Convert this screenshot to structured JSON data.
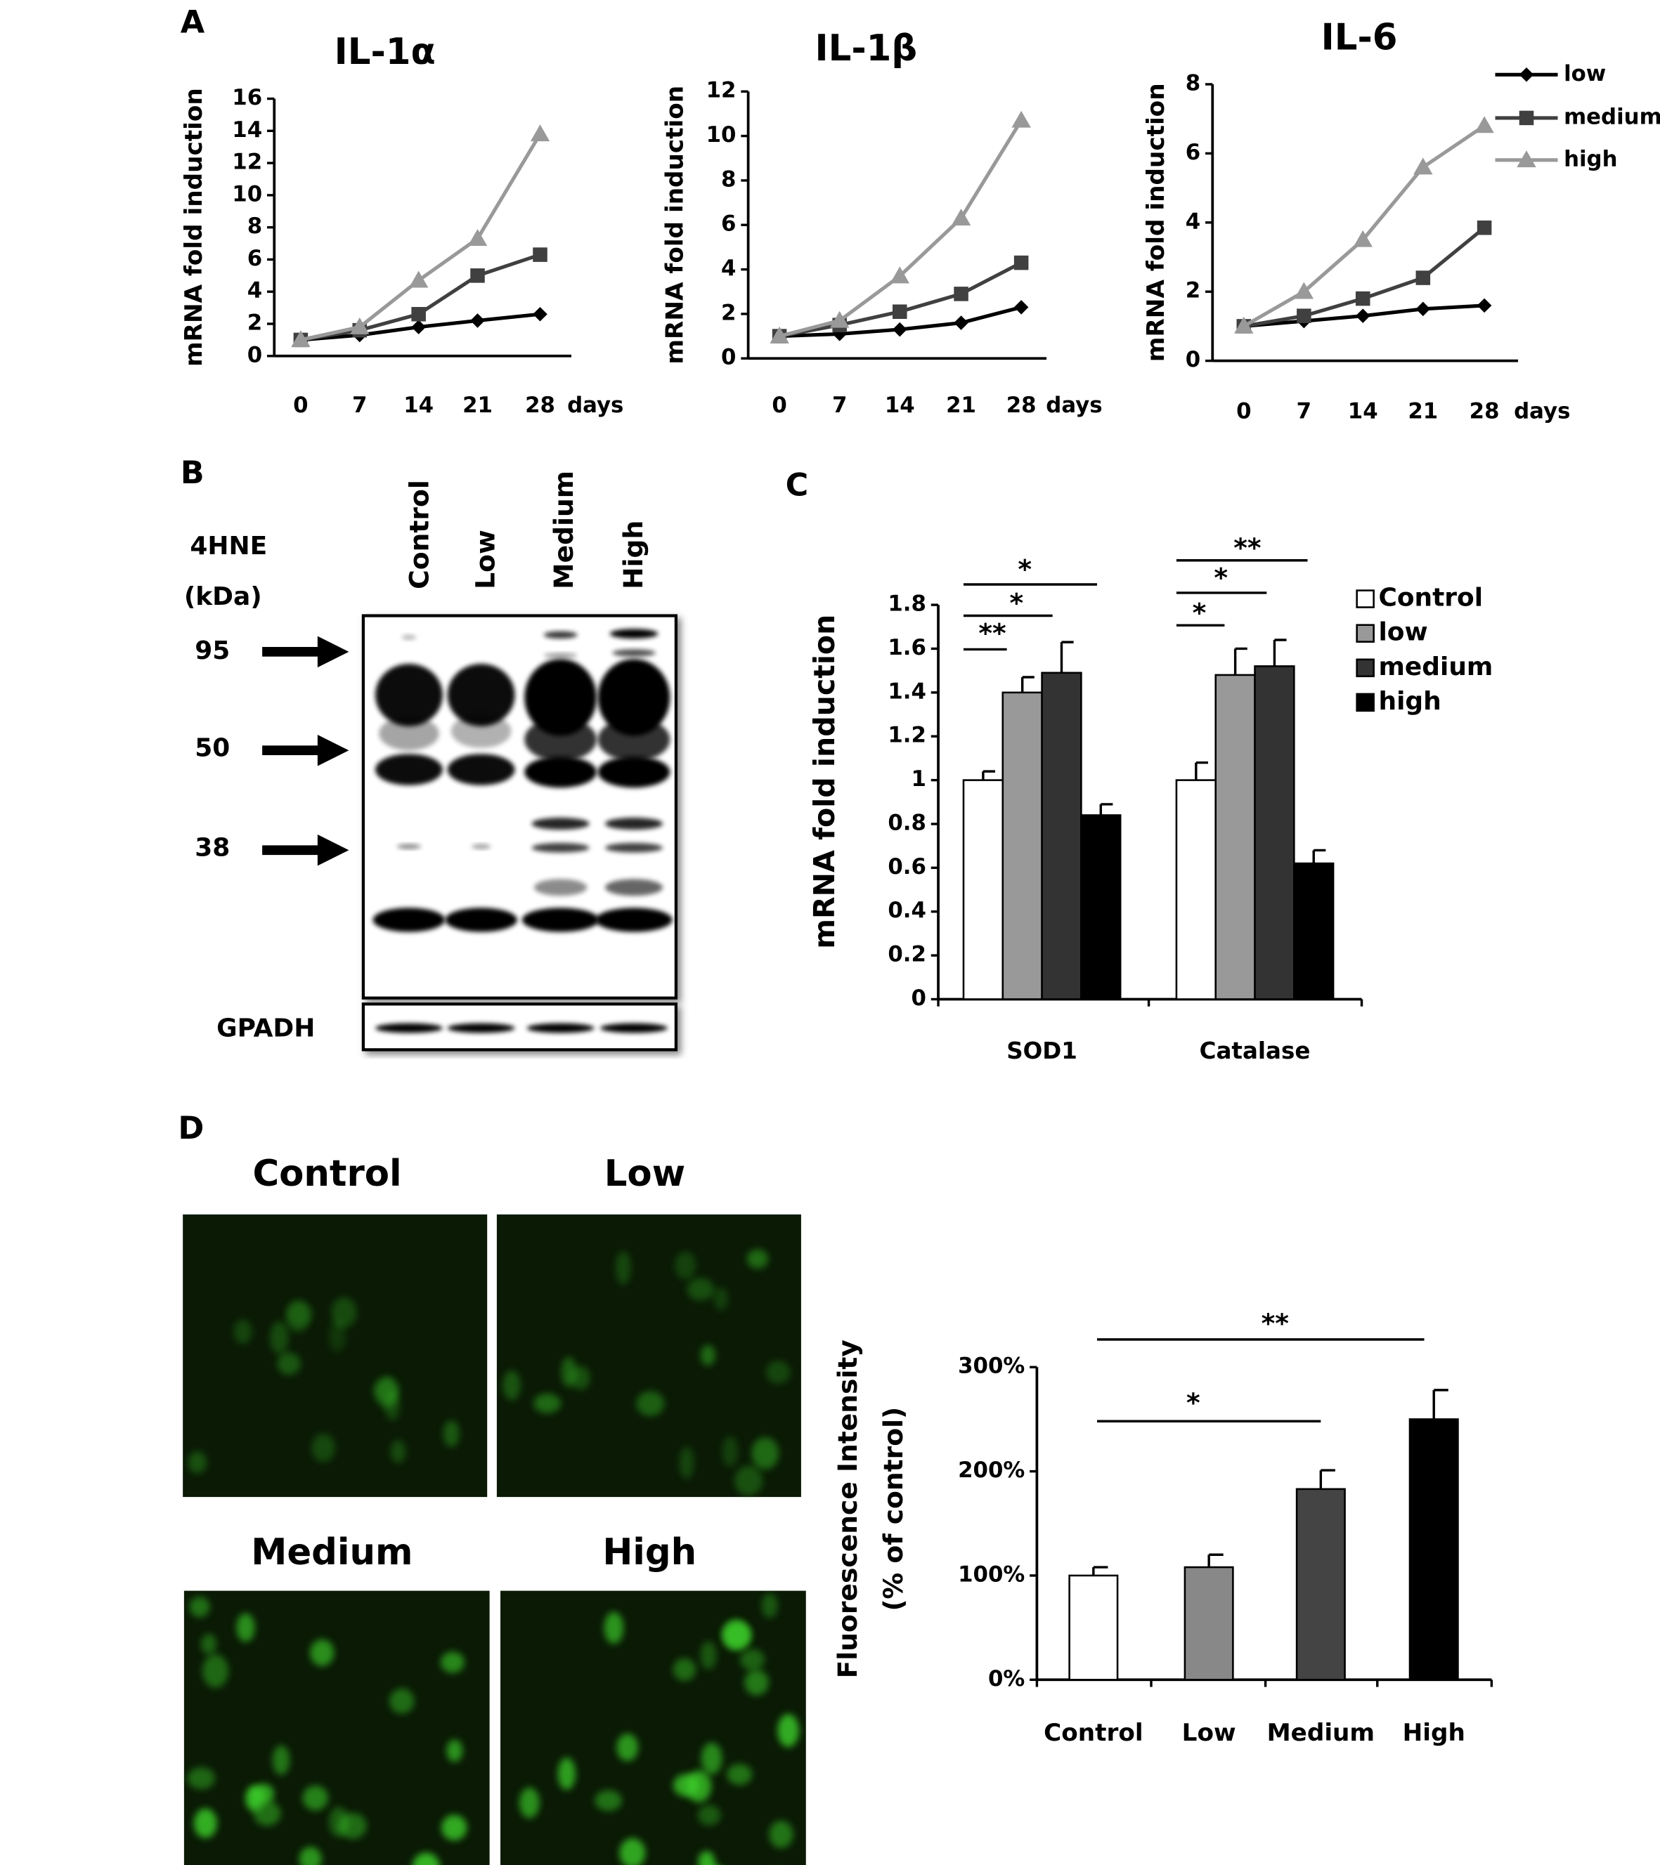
{
  "panel_labels": [
    "A",
    "B",
    "C",
    "D"
  ],
  "chart_data": [
    {
      "type": "line",
      "title": "IL-1α",
      "y_label": "mRNA fold induction",
      "x_label": "days",
      "categories": [
        "0",
        "7",
        "14",
        "21",
        "28"
      ],
      "ylim": [
        0,
        16
      ],
      "yticks": [
        0,
        2,
        4,
        6,
        8,
        10,
        12,
        14,
        16
      ],
      "series": [
        {
          "name": "low",
          "color": "#000000",
          "marker": "diamond",
          "values": [
            1,
            1.3,
            1.8,
            2.2,
            2.6
          ]
        },
        {
          "name": "medium",
          "color": "#404040",
          "marker": "square",
          "values": [
            1,
            1.6,
            2.6,
            5,
            6.3
          ]
        },
        {
          "name": "high",
          "color": "#999999",
          "marker": "triangle",
          "values": [
            1,
            1.8,
            4.7,
            7.3,
            13.8
          ]
        }
      ]
    },
    {
      "type": "line",
      "title": "IL-1β",
      "y_label": "mRNA fold induction",
      "x_label": "days",
      "categories": [
        "0",
        "7",
        "14",
        "21",
        "28"
      ],
      "ylim": [
        0,
        12
      ],
      "yticks": [
        0,
        2,
        4,
        6,
        8,
        10,
        12
      ],
      "series": [
        {
          "name": "low",
          "color": "#000000",
          "marker": "diamond",
          "values": [
            1,
            1.1,
            1.3,
            1.6,
            2.3
          ]
        },
        {
          "name": "medium",
          "color": "#404040",
          "marker": "square",
          "values": [
            1,
            1.5,
            2.1,
            2.9,
            4.3
          ]
        },
        {
          "name": "high",
          "color": "#999999",
          "marker": "triangle",
          "values": [
            1,
            1.7,
            3.7,
            6.3,
            10.7
          ]
        }
      ]
    },
    {
      "type": "line",
      "title": "IL-6",
      "y_label": "mRNA fold induction",
      "x_label": "days",
      "legend": "upper right",
      "categories": [
        "0",
        "7",
        "14",
        "21",
        "28"
      ],
      "ylim": [
        0,
        8
      ],
      "yticks": [
        0,
        2,
        4,
        6,
        8
      ],
      "series": [
        {
          "name": "low",
          "color": "#000000",
          "marker": "diamond",
          "values": [
            1,
            1.15,
            1.3,
            1.5,
            1.6
          ]
        },
        {
          "name": "medium",
          "color": "#404040",
          "marker": "square",
          "values": [
            1,
            1.3,
            1.8,
            2.4,
            3.85
          ]
        },
        {
          "name": "high",
          "color": "#999999",
          "marker": "triangle",
          "values": [
            1,
            2,
            3.5,
            5.6,
            6.8
          ]
        }
      ]
    },
    {
      "type": "grouped_bar",
      "y_label": "mRNA fold induction",
      "legend": "upper right",
      "categories": [
        "SOD1",
        "Catalase"
      ],
      "ylim": [
        0,
        1.8
      ],
      "yticks": [
        0,
        0.2,
        0.4,
        0.6,
        0.8,
        1,
        1.2,
        1.4,
        1.6,
        1.8
      ],
      "series": [
        {
          "name": "Control",
          "color": "#ffffff",
          "values": [
            1,
            1
          ],
          "errors": [
            0.04,
            0.08
          ]
        },
        {
          "name": "low",
          "color": "#999999",
          "values": [
            1.4,
            1.48
          ],
          "errors": [
            0.07,
            0.12
          ]
        },
        {
          "name": "medium",
          "color": "#333333",
          "values": [
            1.49,
            1.52
          ],
          "errors": [
            0.14,
            0.12
          ]
        },
        {
          "name": "high",
          "color": "#000000",
          "values": [
            0.84,
            0.62
          ],
          "errors": [
            0.05,
            0.06
          ]
        }
      ],
      "significance": [
        "**",
        "*",
        "*",
        "*",
        "*",
        "**"
      ]
    },
    {
      "type": "bar",
      "y_label": [
        "Fluorescence Intensity",
        "(% of control)"
      ],
      "categories": [
        "Control",
        "Low",
        "Medium",
        "High"
      ],
      "ylim": [
        0,
        300
      ],
      "yticks": [
        {
          "value": 0,
          "label": "0%"
        },
        {
          "value": 100,
          "label": "100%"
        },
        {
          "value": 200,
          "label": "200%"
        },
        {
          "value": 300,
          "label": "300%"
        }
      ],
      "values": [
        100,
        108,
        183,
        250
      ],
      "errors": [
        8,
        12,
        18,
        28
      ],
      "colors": [
        "#ffffff",
        "#888888",
        "#444444",
        "#000000"
      ],
      "significance": [
        "*",
        "**"
      ]
    }
  ],
  "blot": {
    "probe": "4HNE",
    "unit": "(kDa)",
    "markers": [
      "95",
      "50",
      "38"
    ],
    "lanes": [
      "Control",
      "Low",
      "Medium",
      "High"
    ],
    "loading_control": "GPADH"
  },
  "micrographs": {
    "labels": [
      "Control",
      "Low",
      "Medium",
      "High"
    ]
  }
}
